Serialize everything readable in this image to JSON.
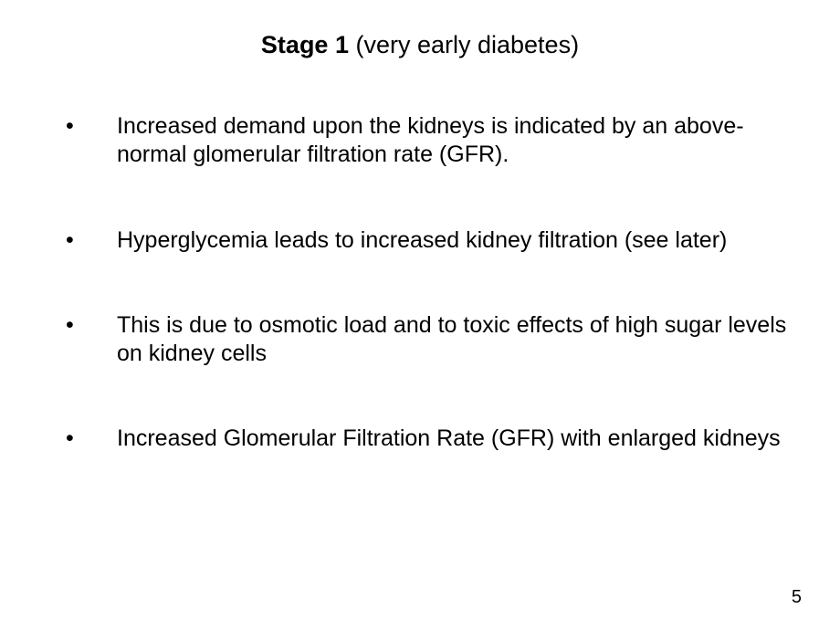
{
  "slide": {
    "title_bold": "Stage 1",
    "title_rest": " (very early diabetes)",
    "title_fontsize": 27,
    "bullet_fontsize": 25,
    "text_color": "#000000",
    "background_color": "#ffffff",
    "bullets": [
      "Increased demand upon the kidneys is indicated by an above-normal glomerular filtration rate (GFR).",
      "Hyperglycemia leads to increased kidney filtration (see later)",
      "This is due to osmotic load and to toxic effects of high sugar levels on kidney cells",
      "Increased Glomerular Filtration Rate (GFR) with enlarged kidneys"
    ],
    "page_number": "5"
  }
}
